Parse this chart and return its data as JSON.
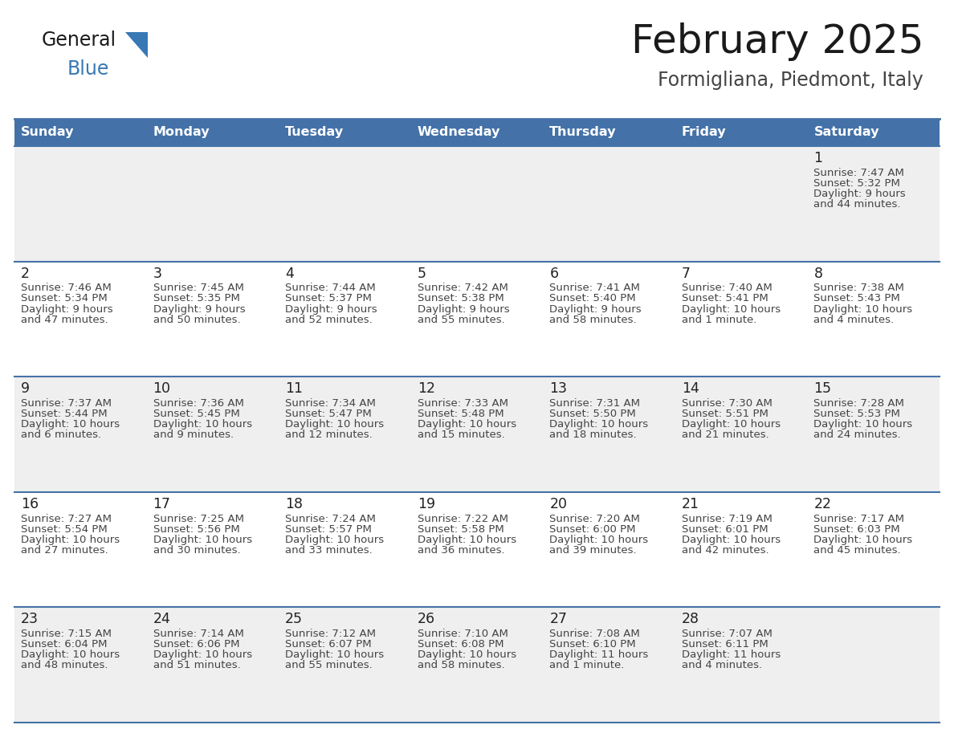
{
  "title": "February 2025",
  "subtitle": "Formigliana, Piedmont, Italy",
  "days_of_week": [
    "Sunday",
    "Monday",
    "Tuesday",
    "Wednesday",
    "Thursday",
    "Friday",
    "Saturday"
  ],
  "header_bg": "#4472a8",
  "header_text_color": "#ffffff",
  "cell_bg_odd": "#efefef",
  "cell_bg_even": "#ffffff",
  "cell_text_color": "#444444",
  "day_num_color": "#222222",
  "border_color": "#4472a8",
  "logo_general_color": "#1a1a1a",
  "logo_blue_color": "#3878b4",
  "calendar_data": [
    {
      "day": 1,
      "col": 6,
      "row": 0,
      "sunrise": "7:47 AM",
      "sunset": "5:32 PM",
      "daylight_h": "9 hours",
      "daylight_m": "44 minutes."
    },
    {
      "day": 2,
      "col": 0,
      "row": 1,
      "sunrise": "7:46 AM",
      "sunset": "5:34 PM",
      "daylight_h": "9 hours",
      "daylight_m": "47 minutes."
    },
    {
      "day": 3,
      "col": 1,
      "row": 1,
      "sunrise": "7:45 AM",
      "sunset": "5:35 PM",
      "daylight_h": "9 hours",
      "daylight_m": "50 minutes."
    },
    {
      "day": 4,
      "col": 2,
      "row": 1,
      "sunrise": "7:44 AM",
      "sunset": "5:37 PM",
      "daylight_h": "9 hours",
      "daylight_m": "52 minutes."
    },
    {
      "day": 5,
      "col": 3,
      "row": 1,
      "sunrise": "7:42 AM",
      "sunset": "5:38 PM",
      "daylight_h": "9 hours",
      "daylight_m": "55 minutes."
    },
    {
      "day": 6,
      "col": 4,
      "row": 1,
      "sunrise": "7:41 AM",
      "sunset": "5:40 PM",
      "daylight_h": "9 hours",
      "daylight_m": "58 minutes."
    },
    {
      "day": 7,
      "col": 5,
      "row": 1,
      "sunrise": "7:40 AM",
      "sunset": "5:41 PM",
      "daylight_h": "10 hours",
      "daylight_m": "1 minute."
    },
    {
      "day": 8,
      "col": 6,
      "row": 1,
      "sunrise": "7:38 AM",
      "sunset": "5:43 PM",
      "daylight_h": "10 hours",
      "daylight_m": "4 minutes."
    },
    {
      "day": 9,
      "col": 0,
      "row": 2,
      "sunrise": "7:37 AM",
      "sunset": "5:44 PM",
      "daylight_h": "10 hours",
      "daylight_m": "6 minutes."
    },
    {
      "day": 10,
      "col": 1,
      "row": 2,
      "sunrise": "7:36 AM",
      "sunset": "5:45 PM",
      "daylight_h": "10 hours",
      "daylight_m": "9 minutes."
    },
    {
      "day": 11,
      "col": 2,
      "row": 2,
      "sunrise": "7:34 AM",
      "sunset": "5:47 PM",
      "daylight_h": "10 hours",
      "daylight_m": "12 minutes."
    },
    {
      "day": 12,
      "col": 3,
      "row": 2,
      "sunrise": "7:33 AM",
      "sunset": "5:48 PM",
      "daylight_h": "10 hours",
      "daylight_m": "15 minutes."
    },
    {
      "day": 13,
      "col": 4,
      "row": 2,
      "sunrise": "7:31 AM",
      "sunset": "5:50 PM",
      "daylight_h": "10 hours",
      "daylight_m": "18 minutes."
    },
    {
      "day": 14,
      "col": 5,
      "row": 2,
      "sunrise": "7:30 AM",
      "sunset": "5:51 PM",
      "daylight_h": "10 hours",
      "daylight_m": "21 minutes."
    },
    {
      "day": 15,
      "col": 6,
      "row": 2,
      "sunrise": "7:28 AM",
      "sunset": "5:53 PM",
      "daylight_h": "10 hours",
      "daylight_m": "24 minutes."
    },
    {
      "day": 16,
      "col": 0,
      "row": 3,
      "sunrise": "7:27 AM",
      "sunset": "5:54 PM",
      "daylight_h": "10 hours",
      "daylight_m": "27 minutes."
    },
    {
      "day": 17,
      "col": 1,
      "row": 3,
      "sunrise": "7:25 AM",
      "sunset": "5:56 PM",
      "daylight_h": "10 hours",
      "daylight_m": "30 minutes."
    },
    {
      "day": 18,
      "col": 2,
      "row": 3,
      "sunrise": "7:24 AM",
      "sunset": "5:57 PM",
      "daylight_h": "10 hours",
      "daylight_m": "33 minutes."
    },
    {
      "day": 19,
      "col": 3,
      "row": 3,
      "sunrise": "7:22 AM",
      "sunset": "5:58 PM",
      "daylight_h": "10 hours",
      "daylight_m": "36 minutes."
    },
    {
      "day": 20,
      "col": 4,
      "row": 3,
      "sunrise": "7:20 AM",
      "sunset": "6:00 PM",
      "daylight_h": "10 hours",
      "daylight_m": "39 minutes."
    },
    {
      "day": 21,
      "col": 5,
      "row": 3,
      "sunrise": "7:19 AM",
      "sunset": "6:01 PM",
      "daylight_h": "10 hours",
      "daylight_m": "42 minutes."
    },
    {
      "day": 22,
      "col": 6,
      "row": 3,
      "sunrise": "7:17 AM",
      "sunset": "6:03 PM",
      "daylight_h": "10 hours",
      "daylight_m": "45 minutes."
    },
    {
      "day": 23,
      "col": 0,
      "row": 4,
      "sunrise": "7:15 AM",
      "sunset": "6:04 PM",
      "daylight_h": "10 hours",
      "daylight_m": "48 minutes."
    },
    {
      "day": 24,
      "col": 1,
      "row": 4,
      "sunrise": "7:14 AM",
      "sunset": "6:06 PM",
      "daylight_h": "10 hours",
      "daylight_m": "51 minutes."
    },
    {
      "day": 25,
      "col": 2,
      "row": 4,
      "sunrise": "7:12 AM",
      "sunset": "6:07 PM",
      "daylight_h": "10 hours",
      "daylight_m": "55 minutes."
    },
    {
      "day": 26,
      "col": 3,
      "row": 4,
      "sunrise": "7:10 AM",
      "sunset": "6:08 PM",
      "daylight_h": "10 hours",
      "daylight_m": "58 minutes."
    },
    {
      "day": 27,
      "col": 4,
      "row": 4,
      "sunrise": "7:08 AM",
      "sunset": "6:10 PM",
      "daylight_h": "11 hours",
      "daylight_m": "1 minute."
    },
    {
      "day": 28,
      "col": 5,
      "row": 4,
      "sunrise": "7:07 AM",
      "sunset": "6:11 PM",
      "daylight_h": "11 hours",
      "daylight_m": "4 minutes."
    }
  ]
}
